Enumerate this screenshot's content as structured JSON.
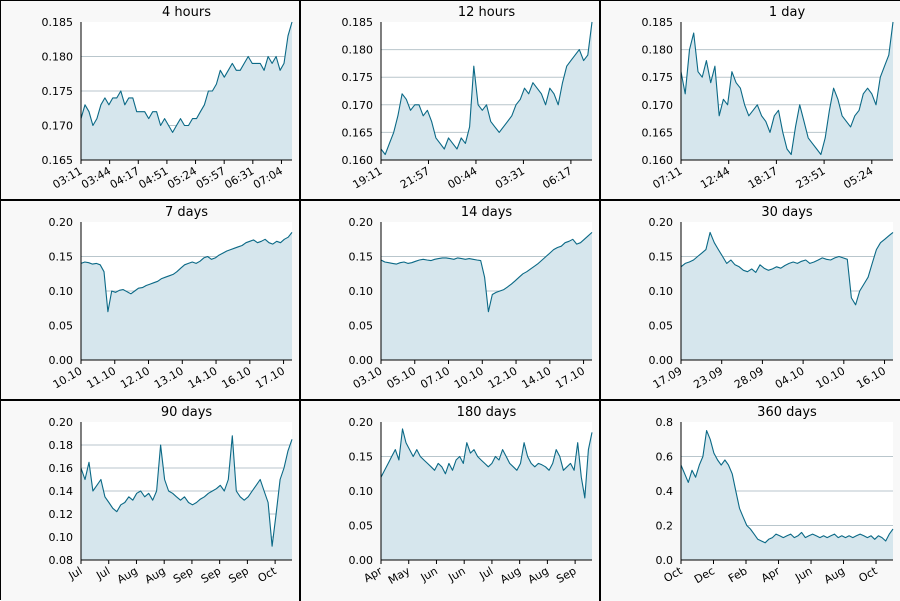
{
  "colors": {
    "line": "#0b6986",
    "fill": "#d6e6ed",
    "grid": "#b9c6cc",
    "axis": "#000000",
    "panel_bg": "#f8f8f8"
  },
  "chart_data": [
    {
      "type": "area",
      "title": "4 hours",
      "xlabel": "",
      "ylabel": "",
      "ylim": [
        0.165,
        0.185
      ],
      "yticks": [
        "0.165",
        "0.170",
        "0.175",
        "0.180",
        "0.185"
      ],
      "xticks": [
        "03:11",
        "03:44",
        "04:17",
        "04:51",
        "05:24",
        "05:57",
        "06:31",
        "07:04"
      ],
      "xticks_end": 0.95,
      "series": [
        {
          "values": [
            0.171,
            0.173,
            0.172,
            0.17,
            0.171,
            0.173,
            0.174,
            0.173,
            0.174,
            0.174,
            0.175,
            0.173,
            0.174,
            0.174,
            0.172,
            0.172,
            0.172,
            0.171,
            0.172,
            0.172,
            0.17,
            0.171,
            0.17,
            0.169,
            0.17,
            0.171,
            0.17,
            0.17,
            0.171,
            0.171,
            0.172,
            0.173,
            0.175,
            0.175,
            0.176,
            0.178,
            0.177,
            0.178,
            0.179,
            0.178,
            0.178,
            0.179,
            0.18,
            0.179,
            0.179,
            0.179,
            0.178,
            0.18,
            0.179,
            0.18,
            0.178,
            0.179,
            0.183,
            0.185
          ]
        }
      ]
    },
    {
      "type": "area",
      "title": "12 hours",
      "xlabel": "",
      "ylabel": "",
      "ylim": [
        0.16,
        0.185
      ],
      "yticks": [
        "0.160",
        "0.165",
        "0.170",
        "0.175",
        "0.180",
        "0.185"
      ],
      "xticks": [
        "19:11",
        "21:57",
        "00:44",
        "03:31",
        "06:17"
      ],
      "xticks_end": 0.9,
      "series": [
        {
          "values": [
            0.162,
            0.161,
            0.163,
            0.165,
            0.168,
            0.172,
            0.171,
            0.169,
            0.17,
            0.17,
            0.168,
            0.169,
            0.167,
            0.164,
            0.163,
            0.162,
            0.164,
            0.163,
            0.162,
            0.164,
            0.163,
            0.166,
            0.177,
            0.17,
            0.169,
            0.17,
            0.167,
            0.166,
            0.165,
            0.166,
            0.167,
            0.168,
            0.17,
            0.171,
            0.173,
            0.172,
            0.174,
            0.173,
            0.172,
            0.17,
            0.173,
            0.172,
            0.17,
            0.174,
            0.177,
            0.178,
            0.179,
            0.18,
            0.178,
            0.179,
            0.185
          ]
        }
      ]
    },
    {
      "type": "area",
      "title": "1 day",
      "xlabel": "",
      "ylabel": "",
      "ylim": [
        0.16,
        0.185
      ],
      "yticks": [
        "0.160",
        "0.165",
        "0.170",
        "0.175",
        "0.180",
        "0.185"
      ],
      "xticks": [
        "07:11",
        "12:44",
        "18:17",
        "23:51",
        "05:24"
      ],
      "xticks_end": 0.9,
      "series": [
        {
          "values": [
            0.176,
            0.172,
            0.18,
            0.183,
            0.176,
            0.175,
            0.178,
            0.174,
            0.177,
            0.168,
            0.171,
            0.17,
            0.176,
            0.174,
            0.173,
            0.17,
            0.168,
            0.169,
            0.17,
            0.168,
            0.167,
            0.165,
            0.168,
            0.169,
            0.165,
            0.162,
            0.161,
            0.166,
            0.17,
            0.167,
            0.164,
            0.163,
            0.162,
            0.161,
            0.164,
            0.169,
            0.173,
            0.171,
            0.168,
            0.167,
            0.166,
            0.168,
            0.169,
            0.172,
            0.173,
            0.172,
            0.17,
            0.175,
            0.177,
            0.179,
            0.185
          ]
        }
      ]
    },
    {
      "type": "area",
      "title": "7 days",
      "xlabel": "",
      "ylabel": "",
      "ylim": [
        0.0,
        0.2
      ],
      "yticks": [
        "0.00",
        "0.05",
        "0.10",
        "0.15",
        "0.20"
      ],
      "xticks": [
        "10.10",
        "11.10",
        "12.10",
        "13.10",
        "14.10",
        "16.10",
        "17.10"
      ],
      "xticks_end": 0.96,
      "series": [
        {
          "values": [
            0.14,
            0.142,
            0.141,
            0.139,
            0.14,
            0.138,
            0.128,
            0.07,
            0.1,
            0.098,
            0.101,
            0.102,
            0.099,
            0.096,
            0.1,
            0.104,
            0.105,
            0.108,
            0.11,
            0.112,
            0.114,
            0.118,
            0.12,
            0.122,
            0.124,
            0.128,
            0.133,
            0.138,
            0.14,
            0.142,
            0.14,
            0.143,
            0.148,
            0.15,
            0.146,
            0.148,
            0.152,
            0.155,
            0.158,
            0.16,
            0.162,
            0.164,
            0.166,
            0.17,
            0.172,
            0.174,
            0.17,
            0.172,
            0.175,
            0.17,
            0.168,
            0.172,
            0.17,
            0.175,
            0.178,
            0.185
          ]
        }
      ]
    },
    {
      "type": "area",
      "title": "14 days",
      "xlabel": "",
      "ylabel": "",
      "ylim": [
        0.0,
        0.2
      ],
      "yticks": [
        "0.00",
        "0.05",
        "0.10",
        "0.15",
        "0.20"
      ],
      "xticks": [
        "03.10",
        "05.10",
        "07.10",
        "10.10",
        "12.10",
        "14.10",
        "17.10"
      ],
      "xticks_end": 0.96,
      "series": [
        {
          "values": [
            0.145,
            0.142,
            0.141,
            0.14,
            0.139,
            0.141,
            0.142,
            0.14,
            0.141,
            0.143,
            0.145,
            0.146,
            0.145,
            0.144,
            0.146,
            0.147,
            0.148,
            0.148,
            0.147,
            0.146,
            0.148,
            0.147,
            0.146,
            0.147,
            0.146,
            0.145,
            0.144,
            0.12,
            0.07,
            0.095,
            0.098,
            0.1,
            0.102,
            0.106,
            0.11,
            0.115,
            0.12,
            0.125,
            0.128,
            0.132,
            0.136,
            0.14,
            0.145,
            0.15,
            0.155,
            0.16,
            0.163,
            0.165,
            0.17,
            0.172,
            0.175,
            0.168,
            0.17,
            0.175,
            0.18,
            0.185
          ]
        }
      ]
    },
    {
      "type": "area",
      "title": "30 days",
      "xlabel": "",
      "ylabel": "",
      "ylim": [
        0.0,
        0.2
      ],
      "yticks": [
        "0.00",
        "0.05",
        "0.10",
        "0.15",
        "0.20"
      ],
      "xticks": [
        "17.09",
        "23.09",
        "28.09",
        "04.10",
        "10.10",
        "16.10"
      ],
      "xticks_end": 0.96,
      "series": [
        {
          "values": [
            0.135,
            0.14,
            0.142,
            0.145,
            0.15,
            0.155,
            0.16,
            0.185,
            0.17,
            0.16,
            0.15,
            0.14,
            0.145,
            0.138,
            0.135,
            0.13,
            0.128,
            0.132,
            0.127,
            0.138,
            0.133,
            0.13,
            0.132,
            0.135,
            0.133,
            0.137,
            0.14,
            0.142,
            0.14,
            0.143,
            0.145,
            0.14,
            0.142,
            0.145,
            0.148,
            0.146,
            0.145,
            0.148,
            0.15,
            0.148,
            0.146,
            0.09,
            0.08,
            0.1,
            0.11,
            0.12,
            0.14,
            0.16,
            0.17,
            0.175,
            0.18,
            0.185
          ]
        }
      ]
    },
    {
      "type": "area",
      "title": "90 days",
      "xlabel": "",
      "ylabel": "",
      "ylim": [
        0.08,
        0.2
      ],
      "yticks": [
        "0.08",
        "0.10",
        "0.12",
        "0.14",
        "0.16",
        "0.18",
        "0.20"
      ],
      "xticks": [
        "Jul",
        "Jul",
        "Aug",
        "Aug",
        "Sep",
        "Sep",
        "Sep",
        "Oct"
      ],
      "xticks_end": 0.92,
      "series": [
        {
          "values": [
            0.16,
            0.15,
            0.165,
            0.14,
            0.145,
            0.15,
            0.135,
            0.13,
            0.125,
            0.122,
            0.128,
            0.13,
            0.135,
            0.132,
            0.138,
            0.14,
            0.135,
            0.138,
            0.132,
            0.14,
            0.18,
            0.15,
            0.14,
            0.138,
            0.135,
            0.132,
            0.135,
            0.13,
            0.128,
            0.13,
            0.133,
            0.135,
            0.138,
            0.14,
            0.142,
            0.145,
            0.14,
            0.15,
            0.188,
            0.14,
            0.135,
            0.132,
            0.135,
            0.14,
            0.145,
            0.15,
            0.14,
            0.13,
            0.092,
            0.12,
            0.15,
            0.16,
            0.175,
            0.185
          ]
        }
      ]
    },
    {
      "type": "area",
      "title": "180 days",
      "xlabel": "",
      "ylabel": "",
      "ylim": [
        0.0,
        0.2
      ],
      "yticks": [
        "0.00",
        "0.05",
        "0.10",
        "0.15",
        "0.20"
      ],
      "xticks": [
        "Apr",
        "May",
        "Jun",
        "Jun",
        "Jul",
        "Aug",
        "Aug",
        "Sep"
      ],
      "xticks_end": 0.92,
      "series": [
        {
          "values": [
            0.12,
            0.13,
            0.14,
            0.15,
            0.16,
            0.145,
            0.19,
            0.17,
            0.16,
            0.15,
            0.16,
            0.15,
            0.145,
            0.14,
            0.135,
            0.13,
            0.14,
            0.135,
            0.125,
            0.14,
            0.13,
            0.145,
            0.15,
            0.14,
            0.17,
            0.155,
            0.16,
            0.15,
            0.145,
            0.14,
            0.135,
            0.14,
            0.15,
            0.145,
            0.16,
            0.15,
            0.14,
            0.135,
            0.13,
            0.14,
            0.17,
            0.15,
            0.14,
            0.135,
            0.14,
            0.138,
            0.135,
            0.13,
            0.14,
            0.16,
            0.15,
            0.13,
            0.135,
            0.14,
            0.13,
            0.17,
            0.12,
            0.09,
            0.16,
            0.185
          ]
        }
      ]
    },
    {
      "type": "area",
      "title": "360 days",
      "xlabel": "",
      "ylabel": "",
      "ylim": [
        0.0,
        0.8
      ],
      "yticks": [
        "0.0",
        "0.2",
        "0.4",
        "0.6",
        "0.8"
      ],
      "xticks": [
        "Oct",
        "Dec",
        "Feb",
        "Apr",
        "Jun",
        "Aug",
        "Oct"
      ],
      "xticks_end": 0.92,
      "series": [
        {
          "values": [
            0.55,
            0.5,
            0.45,
            0.52,
            0.48,
            0.55,
            0.6,
            0.75,
            0.7,
            0.62,
            0.58,
            0.55,
            0.58,
            0.55,
            0.5,
            0.4,
            0.3,
            0.25,
            0.2,
            0.18,
            0.15,
            0.12,
            0.11,
            0.1,
            0.12,
            0.13,
            0.15,
            0.14,
            0.13,
            0.14,
            0.15,
            0.13,
            0.14,
            0.16,
            0.13,
            0.14,
            0.15,
            0.14,
            0.13,
            0.14,
            0.13,
            0.14,
            0.15,
            0.13,
            0.14,
            0.13,
            0.14,
            0.13,
            0.14,
            0.15,
            0.14,
            0.13,
            0.14,
            0.12,
            0.14,
            0.13,
            0.11,
            0.15,
            0.18
          ]
        }
      ]
    }
  ]
}
